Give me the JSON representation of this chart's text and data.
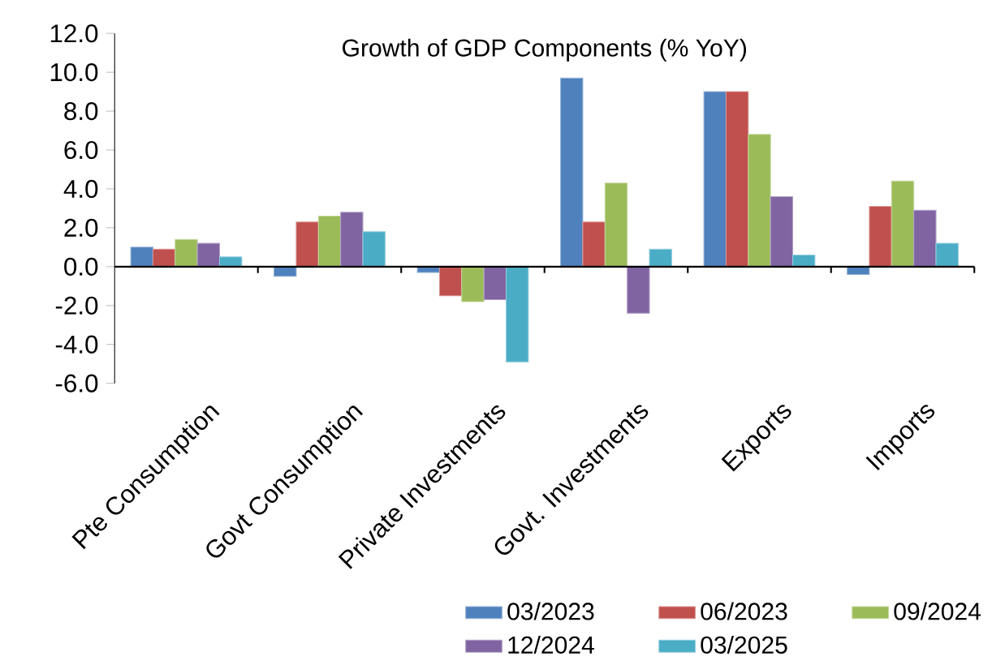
{
  "chart_data": {
    "type": "bar",
    "title": "Growth of GDP Components (% YoY)",
    "categories": [
      "Pte Consumption",
      "Govt Consumption",
      "Private Investments",
      "Govt. Investments",
      "Exports",
      "Imports"
    ],
    "series": [
      {
        "name": "03/2023",
        "color": "#4f81bd",
        "values": [
          1.0,
          -0.5,
          -0.3,
          9.7,
          9.0,
          -0.4
        ]
      },
      {
        "name": "06/2023",
        "color": "#c0504d",
        "values": [
          0.9,
          2.3,
          -1.5,
          2.3,
          9.0,
          3.1
        ]
      },
      {
        "name": "09/2024",
        "color": "#9bbb59",
        "values": [
          1.4,
          2.6,
          -1.8,
          4.3,
          6.8,
          4.4
        ]
      },
      {
        "name": "12/2024",
        "color": "#8064a2",
        "values": [
          1.2,
          2.8,
          -1.7,
          -2.4,
          3.6,
          2.9
        ]
      },
      {
        "name": "03/2025",
        "color": "#4bacc6",
        "values": [
          0.5,
          1.8,
          -4.9,
          0.9,
          0.6,
          1.2
        ]
      }
    ],
    "ylim": [
      -6,
      12
    ],
    "yticks": [
      {
        "value": -6,
        "label": "-6.0"
      },
      {
        "value": -4,
        "label": "-4.0"
      },
      {
        "value": -2,
        "label": "-2.0"
      },
      {
        "value": 0,
        "label": "0.0"
      },
      {
        "value": 2,
        "label": "2.0"
      },
      {
        "value": 4,
        "label": "4.0"
      },
      {
        "value": 6,
        "label": "6.0"
      },
      {
        "value": 8,
        "label": "8.0"
      },
      {
        "value": 10,
        "label": "10.0"
      },
      {
        "value": 12,
        "label": "12.0"
      }
    ],
    "legend": "bottom"
  }
}
